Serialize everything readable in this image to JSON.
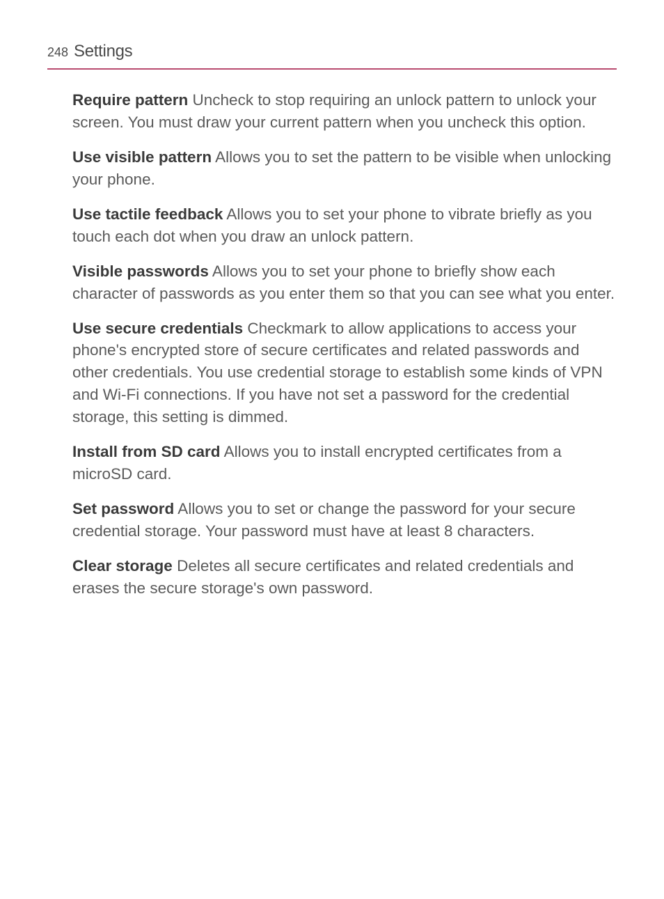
{
  "header": {
    "page_number": "248",
    "section_title": "Settings"
  },
  "items": [
    {
      "title": "Require pattern",
      "description": " Uncheck to stop requiring an unlock pattern to unlock your screen. You must draw your current pattern when you uncheck this option."
    },
    {
      "title": "Use visible pattern",
      "description": " Allows you to set the pattern to be visible when unlocking your phone."
    },
    {
      "title": "Use tactile feedback",
      "description": " Allows you to set your phone to vibrate briefly as you touch each dot when you draw an unlock pattern."
    },
    {
      "title": "Visible passwords",
      "description": " Allows you to set your phone to briefly show each character of passwords as you enter them so that you can see what you enter."
    },
    {
      "title": "Use secure credentials",
      "description": " Checkmark to allow applications to access your phone's encrypted store of secure certificates and related passwords and other credentials. You use credential storage to establish some kinds of VPN and Wi-Fi connections. If you have not set a password for the credential storage, this setting is dimmed."
    },
    {
      "title": "Install from SD card",
      "description": " Allows you to install encrypted certificates from a microSD card."
    },
    {
      "title": "Set password",
      "description": " Allows you to set or change the password for your secure credential storage. Your password must have at least 8 characters."
    },
    {
      "title": "Clear storage",
      "description": " Deletes all secure certificates and related credentials and erases the secure storage's own password."
    }
  ],
  "colors": {
    "header_underline": "#b84a6e",
    "body_text": "#5a5a5a",
    "title_text": "#3a3a3a",
    "background": "#ffffff"
  },
  "typography": {
    "body_fontsize": 22.5,
    "header_number_fontsize": 18,
    "header_title_fontsize": 24,
    "line_height": 1.42
  }
}
